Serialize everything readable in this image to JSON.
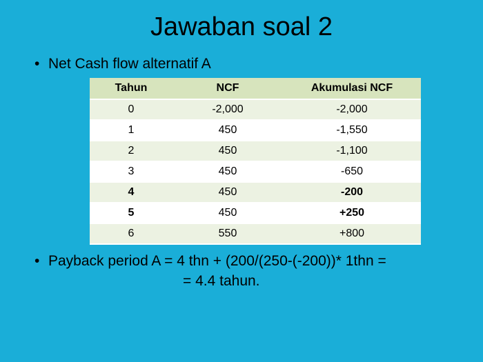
{
  "title": "Jawaban soal 2",
  "bullet1": "Net Cash flow alternatif A",
  "table": {
    "columns": [
      "Tahun",
      "NCF",
      "Akumulasi NCF"
    ],
    "col_widths": [
      "120px",
      "160px",
      "200px"
    ],
    "header_bg": "#d7e4bd",
    "row_alt_bg": "#ecf2e2",
    "row_plain_bg": "#ffffff",
    "border_color": "#ffffff",
    "fontsize": 16,
    "rows": [
      {
        "cells": [
          "0",
          "-2,000",
          "-2,000"
        ],
        "alt": true,
        "bold_cols": []
      },
      {
        "cells": [
          "1",
          "450",
          "-1,550"
        ],
        "alt": false,
        "bold_cols": []
      },
      {
        "cells": [
          "2",
          "450",
          "-1,100"
        ],
        "alt": true,
        "bold_cols": []
      },
      {
        "cells": [
          "3",
          "450",
          "-650"
        ],
        "alt": false,
        "bold_cols": []
      },
      {
        "cells": [
          "4",
          "450",
          "-200"
        ],
        "alt": true,
        "bold_cols": [
          0,
          2
        ]
      },
      {
        "cells": [
          "5",
          "450",
          "+250"
        ],
        "alt": false,
        "bold_cols": [
          0,
          2
        ]
      },
      {
        "cells": [
          "6",
          "550",
          "+800"
        ],
        "alt": true,
        "bold_cols": []
      }
    ]
  },
  "bullet2": "Payback period A  =  4 thn + (200/(250-(-200))* 1thn =",
  "result": "=  4.4 tahun.",
  "colors": {
    "background": "#1aaed8",
    "text": "#000000"
  },
  "typography": {
    "title_fontsize": 38,
    "body_fontsize": 21,
    "font_family": "Arial"
  }
}
